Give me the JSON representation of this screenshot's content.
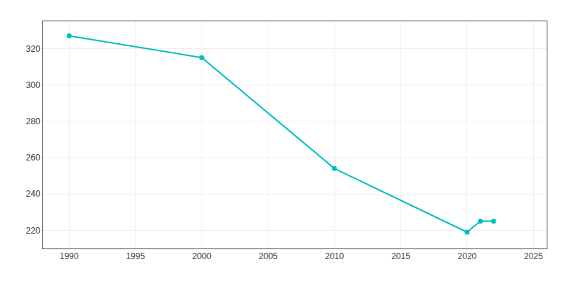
{
  "chart_data": {
    "type": "line",
    "x": [
      1990,
      2000,
      2010,
      2020,
      2021,
      2022
    ],
    "values": [
      327,
      315,
      254,
      219,
      225,
      225
    ],
    "color": "#00BFBF",
    "marker": "circle",
    "xlim": [
      1988,
      2026
    ],
    "xticks": [
      1990,
      1995,
      2000,
      2005,
      2010,
      2015,
      2020,
      2025
    ],
    "ylim": [
      210,
      335
    ],
    "yticks": [
      220,
      240,
      260,
      280,
      300,
      320
    ],
    "grid": true
  }
}
